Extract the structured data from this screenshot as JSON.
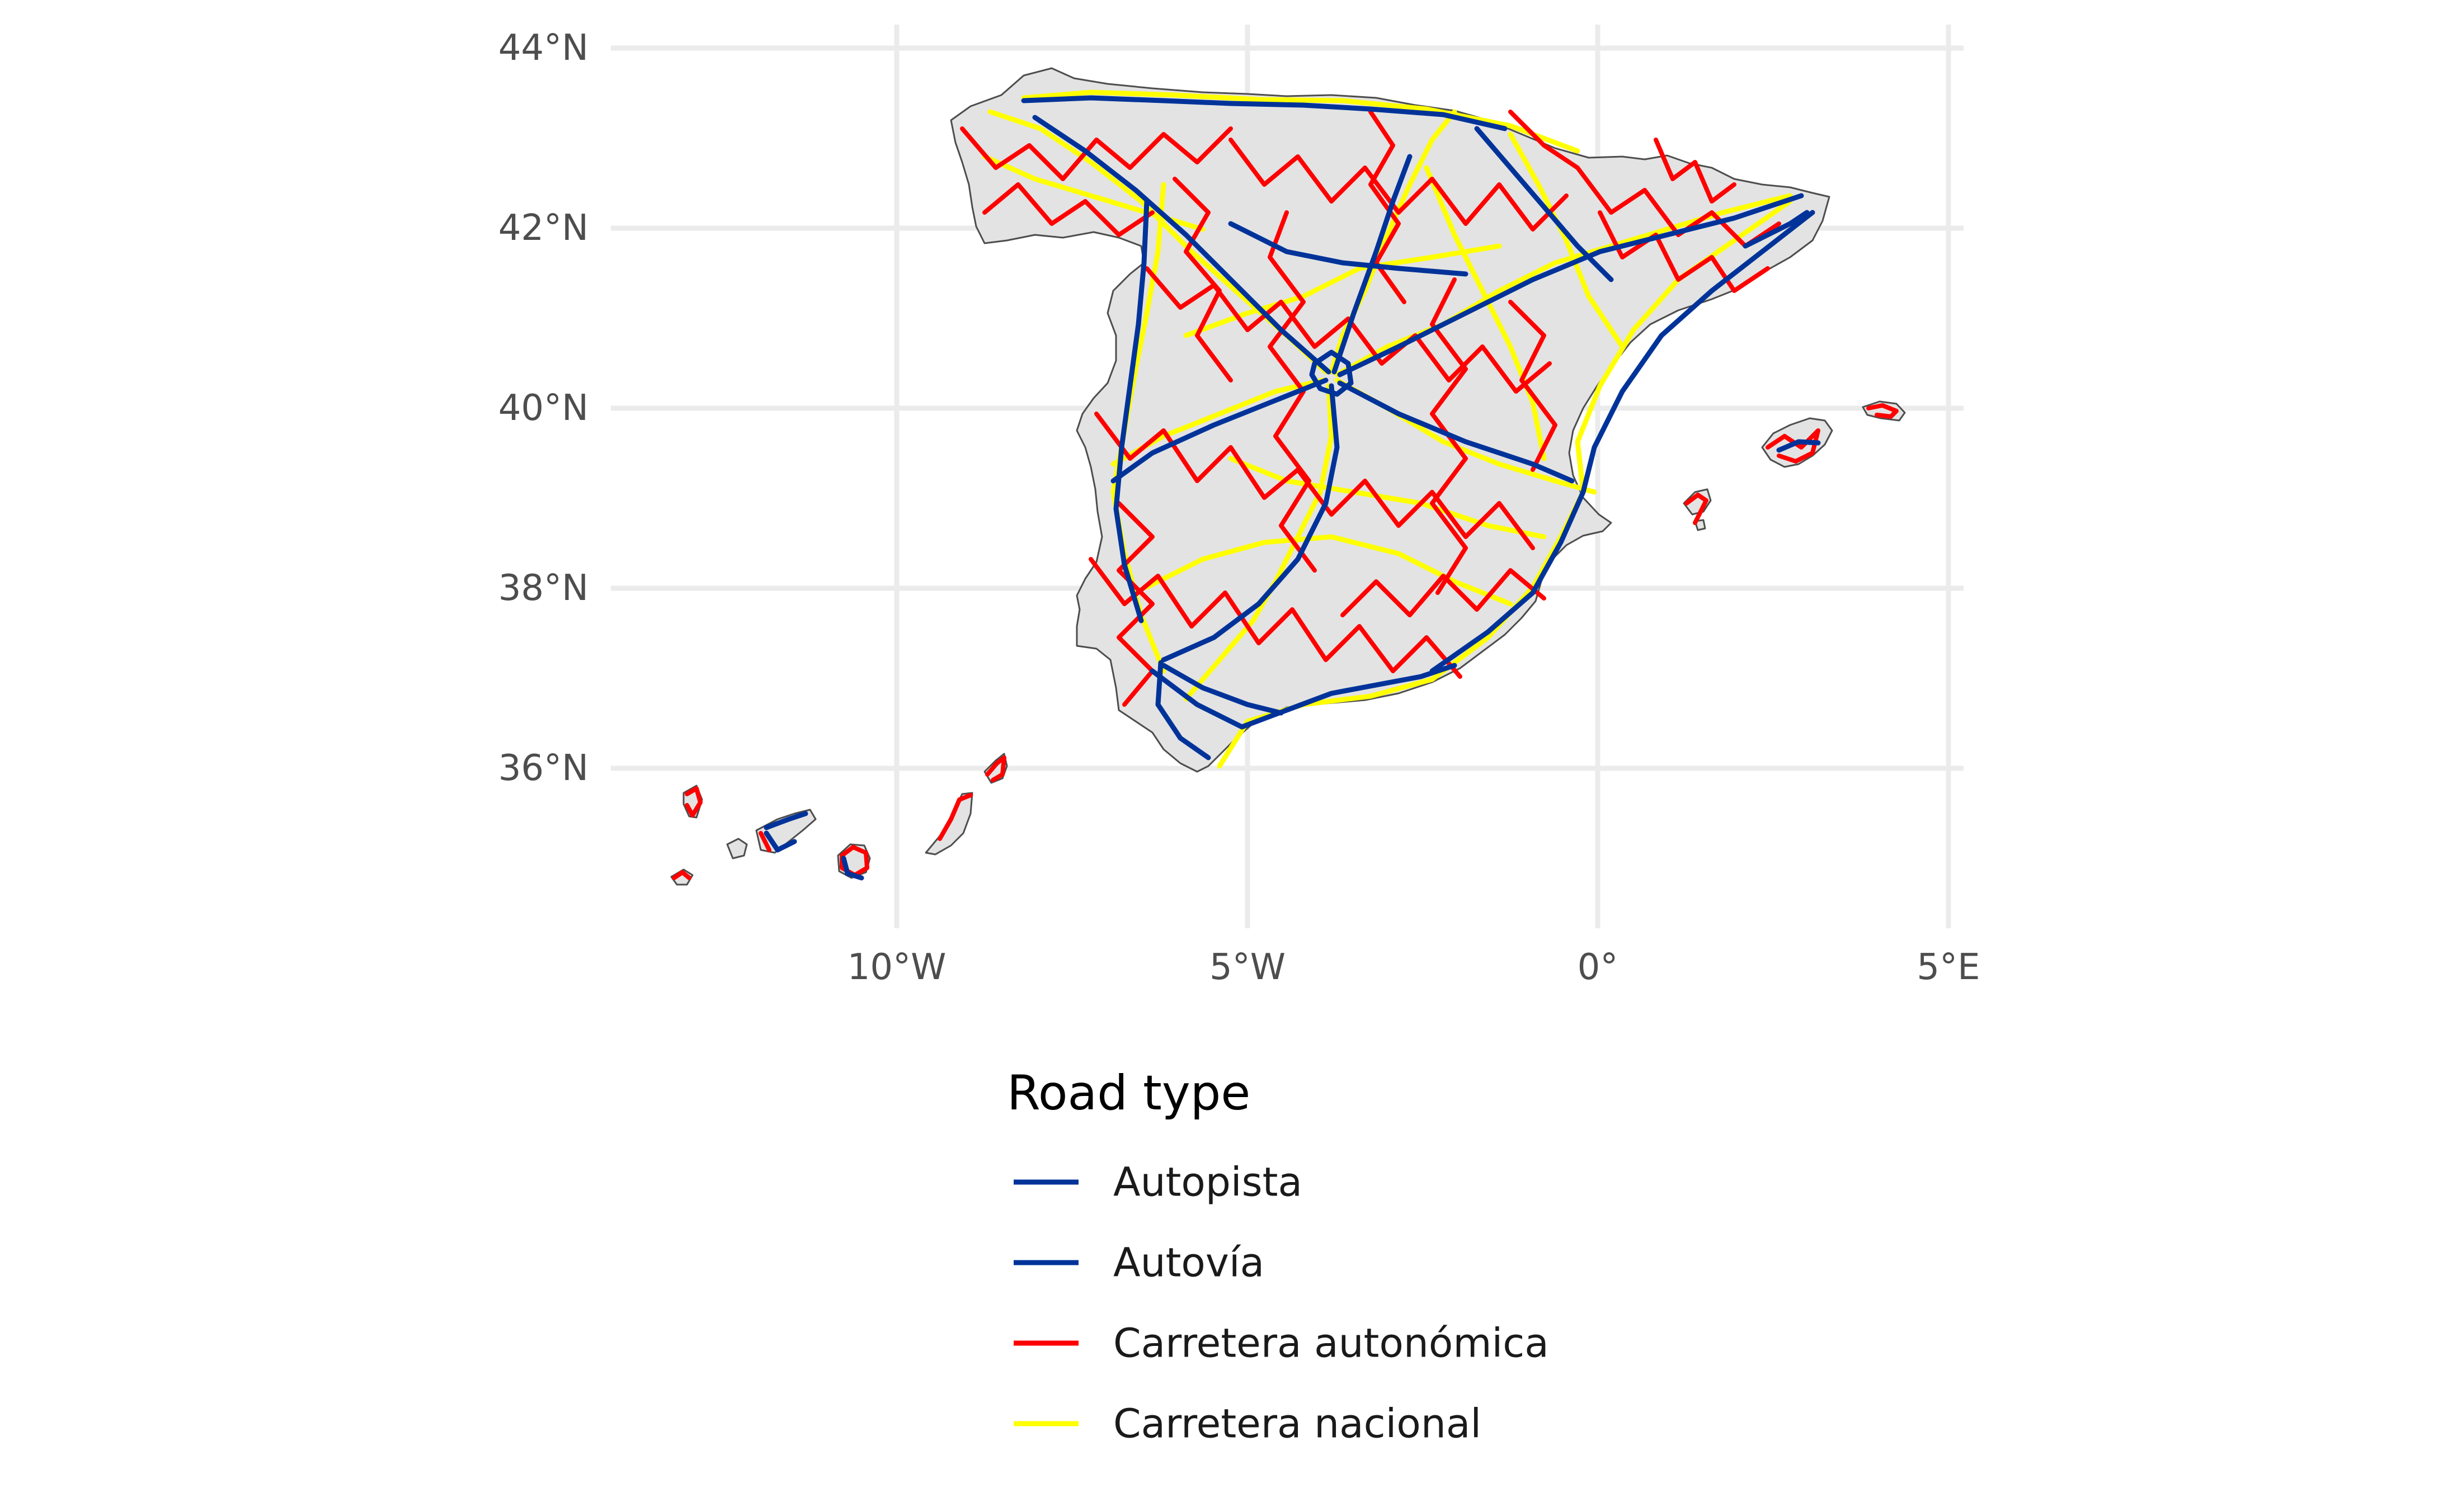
{
  "map": {
    "axes": {
      "y_ticks": [
        "44°N",
        "42°N",
        "40°N",
        "38°N",
        "36°N"
      ],
      "x_ticks": [
        "10°W",
        "5°W",
        "0°",
        "5°E"
      ]
    },
    "legend": {
      "title": "Road type",
      "items": [
        {
          "label": "Autopista",
          "color": "#003399"
        },
        {
          "label": "Autovía",
          "color": "#003399"
        },
        {
          "label": "Carretera autonómica",
          "color": "#ff0000"
        },
        {
          "label": "Carretera nacional",
          "color": "#ffff00"
        }
      ]
    },
    "colors": {
      "land": "#e3e3e3",
      "coast": "#4d4d4d",
      "grid": "#ebebeb",
      "background": "#ffffff"
    },
    "regions": [
      "Peninsula",
      "Balearic Islands",
      "Canary Islands"
    ],
    "tick_values": {
      "lat": [
        44,
        42,
        40,
        38,
        36
      ],
      "lon": [
        -10,
        -5,
        0,
        5
      ]
    }
  }
}
